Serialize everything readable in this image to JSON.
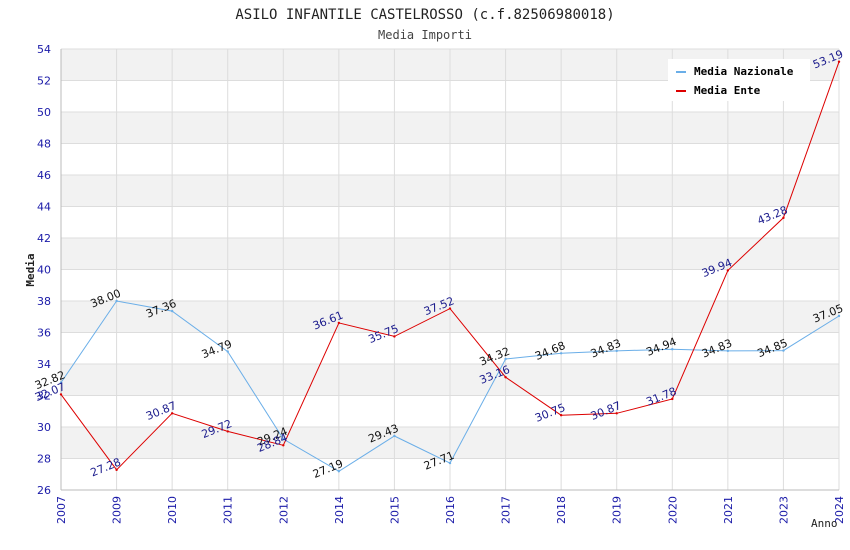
{
  "chart_data": {
    "type": "line",
    "title": "ASILO INFANTILE CASTELROSSO (c.f.82506980018)",
    "subtitle": "Media Importi",
    "xlabel": "Anno",
    "ylabel": "Media",
    "ylim": [
      26,
      54
    ],
    "yticks": [
      "26",
      "28",
      "30",
      "32",
      "34",
      "36",
      "38",
      "40",
      "42",
      "44",
      "46",
      "48",
      "50",
      "52",
      "54"
    ],
    "categories": [
      "2007",
      "2009",
      "2010",
      "2011",
      "2012",
      "2014",
      "2015",
      "2016",
      "2017",
      "2018",
      "2019",
      "2020",
      "2021",
      "2023",
      "2024"
    ],
    "series": [
      {
        "name": "Media Nazionale",
        "color": "#6aaee8",
        "values": [
          32.82,
          38.0,
          37.36,
          34.79,
          29.24,
          27.19,
          29.43,
          27.71,
          34.32,
          34.68,
          34.83,
          34.94,
          34.83,
          34.85,
          37.05
        ],
        "labels": [
          "32.82",
          "38.00",
          "37.36",
          "34.79",
          "29.24",
          "27.19",
          "29.43",
          "27.71",
          "34.32",
          "34.68",
          "34.83",
          "34.94",
          "34.83",
          "34.85",
          "37.05"
        ]
      },
      {
        "name": "Media Ente",
        "color": "#dd0000",
        "values": [
          32.07,
          27.28,
          30.87,
          29.72,
          28.84,
          36.61,
          35.75,
          37.52,
          33.16,
          30.75,
          30.87,
          31.78,
          39.94,
          43.28,
          53.19
        ],
        "labels": [
          "32.07",
          "27.28",
          "30.87",
          "29.72",
          "28.84",
          "36.61",
          "35.75",
          "37.52",
          "33.16",
          "30.75",
          "30.87",
          "31.78",
          "39.94",
          "43.28",
          "53.19"
        ]
      }
    ],
    "grid": true,
    "legend_position": "top-right"
  }
}
